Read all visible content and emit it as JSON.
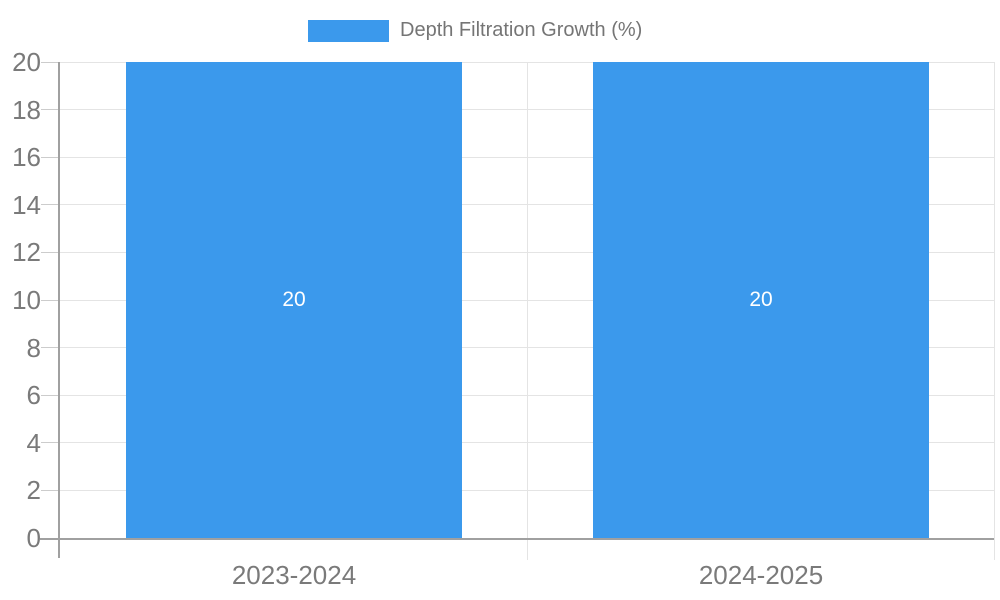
{
  "chart_data": {
    "type": "bar",
    "title": "",
    "legend": {
      "label": "Depth Filtration Growth (%)",
      "position": "top"
    },
    "categories": [
      "2023-2024",
      "2024-2025"
    ],
    "series": [
      {
        "name": "Depth Filtration Growth (%)",
        "values": [
          20,
          20
        ],
        "labels": [
          "20",
          "20"
        ]
      }
    ],
    "xlabel": "",
    "ylabel": "",
    "ylim": [
      0,
      20
    ],
    "ytick_step": 2,
    "yticks": [
      0,
      2,
      4,
      6,
      8,
      10,
      12,
      14,
      16,
      18,
      20
    ],
    "grid": true,
    "colors": {
      "bar": "#3b99ec",
      "grid": "#e4e4e4",
      "axis": "#a0a0a0",
      "tick": "#cccccc",
      "axis_label_text": "#7a7a7a",
      "legend_text": "#757575",
      "bar_label_text": "#ffffff",
      "background": "#ffffff"
    }
  }
}
